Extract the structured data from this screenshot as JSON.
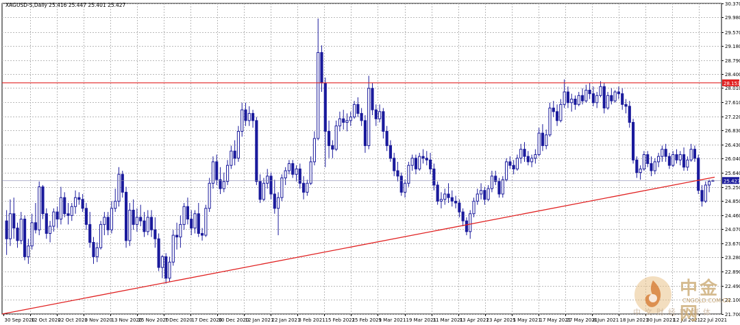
{
  "header": {
    "symbol_info": "XAGUSD-S,Daily  25.416 25.447 25.401 25.427"
  },
  "chart_data": {
    "type": "candlestick",
    "symbol": "XAGUSD-S",
    "timeframe": "Daily",
    "ohlc_last": {
      "open": 25.416,
      "high": 25.447,
      "low": 25.401,
      "close": 25.427
    },
    "ylim": [
      21.7,
      30.37
    ],
    "y_ticks": [
      "30.370",
      "29.980",
      "29.570",
      "29.180",
      "28.790",
      "28.400",
      "28.010",
      "27.610",
      "27.220",
      "26.830",
      "26.430",
      "26.040",
      "25.640",
      "25.250",
      "24.850",
      "24.460",
      "24.070",
      "23.670",
      "23.280",
      "22.890",
      "22.490",
      "22.100",
      "21.700"
    ],
    "x_ticks": [
      "30 Sep 2020",
      "12 Oct 2020",
      "22 Oct 2020",
      "3 Nov 2020",
      "13 Nov 2020",
      "25 Nov 2020",
      "7 Dec 2020",
      "17 Dec 2020",
      "30 Dec 2020",
      "12 Jan 2021",
      "22 Jan 2021",
      "3 Feb 2021",
      "15 Feb 2021",
      "25 Feb 2021",
      "9 Mar 2021",
      "19 Mar 2021",
      "31 Mar 2021",
      "13 Apr 2021",
      "23 Apr 2021",
      "5 May 2021",
      "17 May 2021",
      "27 May 2021",
      "8 Jun 2021",
      "18 Jun 2021",
      "30 Jun 2021",
      "12 Jul 2021",
      "22 Jul 2021"
    ],
    "horizontal_line": {
      "label": "28.153",
      "value": 28.153,
      "color": "#e02020"
    },
    "price_marker": {
      "label": "25.427",
      "value": 25.427,
      "color": "#1a1a9c"
    },
    "trendline": {
      "start": {
        "x": "30 Sep 2020",
        "y": 21.7
      },
      "end": {
        "x": "26 Jul 2021",
        "y": 25.52
      },
      "color": "#e02020"
    },
    "grid": true,
    "candle_color": "#1a1a9c",
    "ohlc": [
      [
        24.3,
        24.6,
        23.35,
        23.8
      ],
      [
        23.8,
        24.9,
        23.6,
        24.5
      ],
      [
        24.5,
        24.95,
        23.8,
        24.1
      ],
      [
        24.1,
        24.25,
        23.55,
        23.75
      ],
      [
        23.75,
        24.55,
        23.65,
        24.35
      ],
      [
        24.35,
        24.45,
        23.2,
        23.3
      ],
      [
        23.3,
        23.8,
        23.1,
        23.6
      ],
      [
        23.6,
        24.5,
        23.5,
        24.25
      ],
      [
        24.25,
        24.8,
        23.95,
        24.05
      ],
      [
        24.05,
        25.4,
        23.9,
        25.25
      ],
      [
        25.25,
        25.3,
        24.35,
        24.5
      ],
      [
        24.5,
        24.65,
        23.8,
        23.95
      ],
      [
        23.95,
        24.3,
        23.7,
        24.15
      ],
      [
        24.15,
        24.65,
        24.0,
        24.55
      ],
      [
        24.55,
        24.7,
        24.1,
        24.35
      ],
      [
        24.35,
        25.25,
        24.2,
        24.95
      ],
      [
        24.95,
        25.1,
        24.4,
        24.5
      ],
      [
        24.5,
        24.8,
        24.2,
        24.45
      ],
      [
        24.45,
        24.8,
        24.3,
        24.7
      ],
      [
        24.7,
        25.15,
        24.5,
        24.95
      ],
      [
        24.95,
        25.1,
        24.75,
        24.9
      ],
      [
        24.9,
        25.05,
        24.55,
        24.65
      ],
      [
        24.65,
        24.8,
        24.05,
        24.2
      ],
      [
        24.2,
        24.55,
        23.55,
        23.7
      ],
      [
        23.7,
        23.85,
        23.1,
        23.3
      ],
      [
        23.3,
        23.7,
        23.15,
        23.55
      ],
      [
        23.55,
        24.3,
        23.5,
        24.2
      ],
      [
        24.2,
        24.55,
        23.9,
        24.4
      ],
      [
        24.4,
        24.55,
        23.9,
        24.05
      ],
      [
        24.05,
        24.85,
        23.95,
        24.65
      ],
      [
        24.65,
        25.2,
        24.55,
        24.85
      ],
      [
        24.85,
        25.8,
        24.7,
        25.6
      ],
      [
        25.6,
        25.7,
        24.95,
        25.1
      ],
      [
        25.1,
        25.25,
        23.55,
        23.75
      ],
      [
        23.75,
        24.8,
        23.6,
        24.6
      ],
      [
        24.6,
        24.9,
        24.05,
        24.2
      ],
      [
        24.2,
        24.65,
        24.0,
        24.4
      ],
      [
        24.4,
        24.75,
        24.15,
        24.3
      ],
      [
        24.3,
        24.55,
        23.85,
        24.0
      ],
      [
        24.0,
        24.6,
        23.9,
        24.4
      ],
      [
        24.4,
        24.6,
        23.85,
        24.05
      ],
      [
        24.05,
        24.4,
        23.55,
        23.8
      ],
      [
        23.8,
        23.95,
        22.9,
        23.0
      ],
      [
        23.0,
        23.35,
        22.7,
        23.3
      ],
      [
        23.3,
        23.4,
        22.55,
        22.7
      ],
      [
        22.7,
        23.3,
        22.6,
        23.15
      ],
      [
        23.15,
        24.05,
        23.05,
        23.9
      ],
      [
        23.9,
        24.25,
        23.5,
        23.85
      ],
      [
        23.85,
        24.45,
        23.55,
        24.2
      ],
      [
        24.2,
        24.8,
        24.05,
        24.7
      ],
      [
        24.7,
        24.95,
        24.2,
        24.35
      ],
      [
        24.35,
        24.6,
        23.9,
        24.1
      ],
      [
        24.1,
        24.6,
        23.95,
        24.5
      ],
      [
        24.5,
        24.8,
        23.85,
        23.95
      ],
      [
        23.95,
        24.1,
        23.75,
        23.9
      ],
      [
        23.9,
        24.75,
        23.85,
        24.65
      ],
      [
        24.65,
        25.5,
        24.55,
        25.35
      ],
      [
        25.35,
        26.1,
        25.2,
        25.95
      ],
      [
        25.95,
        26.15,
        25.3,
        25.45
      ],
      [
        25.45,
        25.8,
        25.05,
        25.2
      ],
      [
        25.2,
        25.65,
        25.1,
        25.4
      ],
      [
        25.4,
        26.0,
        25.3,
        25.85
      ],
      [
        25.85,
        26.4,
        25.75,
        26.25
      ],
      [
        26.25,
        26.55,
        25.85,
        26.05
      ],
      [
        26.05,
        26.95,
        25.95,
        26.8
      ],
      [
        26.8,
        27.6,
        26.65,
        27.4
      ],
      [
        27.4,
        27.6,
        26.95,
        27.1
      ],
      [
        27.1,
        27.5,
        26.95,
        27.3
      ],
      [
        27.3,
        27.4,
        26.9,
        27.1
      ],
      [
        27.1,
        27.2,
        25.3,
        25.4
      ],
      [
        25.4,
        25.6,
        24.8,
        24.9
      ],
      [
        24.9,
        25.5,
        24.85,
        25.35
      ],
      [
        25.35,
        25.75,
        25.2,
        25.55
      ],
      [
        25.55,
        25.65,
        24.9,
        25.05
      ],
      [
        25.05,
        25.45,
        24.5,
        24.65
      ],
      [
        24.65,
        25.1,
        23.9,
        24.95
      ],
      [
        24.95,
        25.6,
        24.85,
        25.5
      ],
      [
        25.5,
        25.8,
        25.3,
        25.7
      ],
      [
        25.7,
        26.0,
        25.6,
        25.9
      ],
      [
        25.9,
        26.0,
        25.5,
        25.6
      ],
      [
        25.6,
        25.85,
        25.4,
        25.75
      ],
      [
        25.75,
        25.9,
        25.2,
        25.35
      ],
      [
        25.35,
        25.55,
        24.9,
        25.1
      ],
      [
        25.1,
        25.45,
        25.0,
        25.35
      ],
      [
        25.35,
        26.1,
        25.3,
        25.95
      ],
      [
        25.95,
        26.8,
        25.85,
        26.6
      ],
      [
        26.6,
        29.95,
        26.55,
        29.0
      ],
      [
        29.0,
        29.2,
        27.9,
        28.15
      ],
      [
        28.15,
        28.3,
        25.8,
        26.8
      ],
      [
        26.8,
        27.1,
        26.05,
        26.4
      ],
      [
        26.4,
        26.55,
        26.05,
        26.3
      ],
      [
        26.3,
        27.1,
        26.25,
        26.95
      ],
      [
        26.95,
        27.35,
        26.8,
        27.15
      ],
      [
        27.15,
        27.4,
        26.85,
        27.05
      ],
      [
        27.05,
        27.3,
        26.8,
        27.1
      ],
      [
        27.1,
        27.35,
        26.95,
        27.2
      ],
      [
        27.2,
        27.65,
        27.15,
        27.55
      ],
      [
        27.55,
        27.75,
        27.2,
        27.3
      ],
      [
        27.3,
        27.45,
        26.95,
        27.1
      ],
      [
        27.1,
        27.25,
        26.2,
        26.4
      ],
      [
        26.4,
        28.35,
        26.3,
        28.0
      ],
      [
        28.0,
        28.15,
        27.25,
        27.4
      ],
      [
        27.4,
        27.55,
        26.95,
        27.15
      ],
      [
        27.15,
        27.55,
        27.05,
        27.35
      ],
      [
        27.35,
        27.45,
        26.6,
        26.8
      ],
      [
        26.8,
        26.95,
        26.25,
        26.4
      ],
      [
        26.4,
        26.55,
        25.95,
        26.05
      ],
      [
        26.05,
        26.2,
        25.55,
        25.7
      ],
      [
        25.7,
        25.95,
        25.4,
        25.55
      ],
      [
        25.55,
        25.65,
        25.0,
        25.1
      ],
      [
        25.1,
        25.45,
        24.95,
        25.35
      ],
      [
        25.35,
        25.95,
        25.25,
        25.85
      ],
      [
        25.85,
        26.15,
        25.7,
        26.05
      ],
      [
        26.05,
        26.15,
        25.6,
        25.75
      ],
      [
        25.75,
        26.2,
        25.7,
        26.1
      ],
      [
        26.1,
        26.3,
        25.9,
        26.05
      ],
      [
        26.05,
        26.25,
        25.85,
        26.0
      ],
      [
        26.0,
        26.2,
        25.6,
        25.75
      ],
      [
        25.75,
        25.9,
        25.15,
        25.3
      ],
      [
        25.3,
        25.4,
        24.75,
        24.85
      ],
      [
        24.85,
        25.1,
        24.65,
        24.9
      ],
      [
        24.9,
        25.2,
        24.75,
        25.05
      ],
      [
        25.05,
        25.35,
        24.8,
        24.95
      ],
      [
        24.95,
        25.15,
        24.7,
        24.85
      ],
      [
        24.85,
        25.0,
        24.65,
        24.8
      ],
      [
        24.8,
        24.9,
        24.4,
        24.55
      ],
      [
        24.55,
        24.65,
        24.15,
        24.3
      ],
      [
        24.3,
        24.4,
        23.9,
        24.0
      ],
      [
        24.0,
        24.6,
        23.8,
        24.5
      ],
      [
        24.5,
        24.95,
        24.4,
        24.85
      ],
      [
        24.85,
        25.2,
        24.75,
        25.05
      ],
      [
        25.05,
        25.35,
        24.9,
        25.15
      ],
      [
        25.15,
        25.25,
        24.75,
        24.9
      ],
      [
        24.9,
        25.3,
        24.85,
        25.2
      ],
      [
        25.2,
        25.7,
        25.1,
        25.55
      ],
      [
        25.55,
        25.7,
        25.3,
        25.4
      ],
      [
        25.4,
        25.5,
        24.95,
        25.05
      ],
      [
        25.05,
        25.55,
        24.95,
        25.45
      ],
      [
        25.45,
        26.05,
        25.4,
        25.95
      ],
      [
        25.95,
        26.1,
        25.75,
        25.85
      ],
      [
        25.85,
        26.0,
        25.6,
        25.75
      ],
      [
        25.75,
        26.15,
        25.7,
        26.05
      ],
      [
        26.05,
        26.45,
        25.9,
        26.3
      ],
      [
        26.3,
        26.5,
        25.95,
        26.1
      ],
      [
        26.1,
        26.25,
        25.85,
        25.95
      ],
      [
        25.95,
        26.15,
        25.8,
        26.05
      ],
      [
        26.05,
        26.3,
        25.9,
        26.15
      ],
      [
        26.15,
        26.9,
        26.1,
        26.75
      ],
      [
        26.75,
        27.0,
        26.25,
        26.4
      ],
      [
        26.4,
        26.85,
        26.3,
        26.7
      ],
      [
        26.7,
        27.6,
        26.65,
        27.45
      ],
      [
        27.45,
        27.65,
        27.2,
        27.35
      ],
      [
        27.35,
        27.55,
        26.95,
        27.1
      ],
      [
        27.1,
        27.7,
        27.05,
        27.55
      ],
      [
        27.55,
        28.25,
        27.45,
        27.9
      ],
      [
        27.9,
        28.05,
        27.45,
        27.6
      ],
      [
        27.6,
        27.85,
        27.35,
        27.7
      ],
      [
        27.7,
        27.8,
        27.4,
        27.55
      ],
      [
        27.55,
        27.9,
        27.5,
        27.8
      ],
      [
        27.8,
        28.0,
        27.55,
        27.65
      ],
      [
        27.65,
        28.1,
        27.6,
        27.95
      ],
      [
        27.95,
        28.15,
        27.7,
        27.85
      ],
      [
        27.85,
        28.05,
        27.5,
        27.6
      ],
      [
        27.6,
        27.9,
        27.45,
        27.8
      ],
      [
        27.8,
        28.2,
        27.75,
        28.05
      ],
      [
        28.05,
        28.15,
        27.3,
        27.45
      ],
      [
        27.45,
        27.9,
        27.4,
        27.8
      ],
      [
        27.8,
        28.0,
        27.55,
        27.65
      ],
      [
        27.65,
        27.95,
        27.6,
        27.9
      ],
      [
        27.9,
        28.05,
        27.7,
        27.85
      ],
      [
        27.85,
        28.0,
        27.4,
        27.55
      ],
      [
        27.55,
        27.7,
        27.3,
        27.5
      ],
      [
        27.5,
        27.65,
        26.9,
        27.05
      ],
      [
        27.05,
        27.15,
        25.9,
        26.0
      ],
      [
        26.0,
        26.1,
        25.5,
        25.65
      ],
      [
        25.65,
        25.85,
        25.45,
        25.75
      ],
      [
        25.75,
        26.25,
        25.7,
        26.15
      ],
      [
        26.15,
        26.25,
        25.8,
        25.9
      ],
      [
        25.9,
        26.1,
        25.55,
        25.7
      ],
      [
        25.7,
        26.05,
        25.6,
        25.95
      ],
      [
        25.95,
        26.2,
        25.8,
        26.1
      ],
      [
        26.1,
        26.4,
        25.95,
        26.3
      ],
      [
        26.3,
        26.45,
        25.95,
        26.1
      ],
      [
        26.1,
        26.2,
        25.75,
        25.85
      ],
      [
        25.85,
        26.25,
        25.8,
        26.15
      ],
      [
        26.15,
        26.3,
        25.9,
        26.0
      ],
      [
        26.0,
        26.25,
        25.85,
        26.15
      ],
      [
        26.15,
        26.35,
        25.7,
        25.8
      ],
      [
        25.8,
        26.1,
        25.7,
        26.0
      ],
      [
        26.0,
        26.45,
        25.95,
        26.3
      ],
      [
        26.3,
        26.4,
        25.95,
        26.05
      ],
      [
        26.05,
        26.15,
        25.05,
        25.15
      ],
      [
        25.15,
        25.3,
        24.7,
        24.85
      ],
      [
        24.85,
        25.4,
        24.8,
        25.3
      ],
      [
        25.3,
        25.45,
        25.1,
        25.4
      ],
      [
        25.416,
        25.447,
        25.401,
        25.427
      ]
    ]
  },
  "watermark": {
    "brand_cn": "中金网",
    "brand_domain": "CNGOLD.COM.CN",
    "tagline": "中文财经新媒体"
  }
}
